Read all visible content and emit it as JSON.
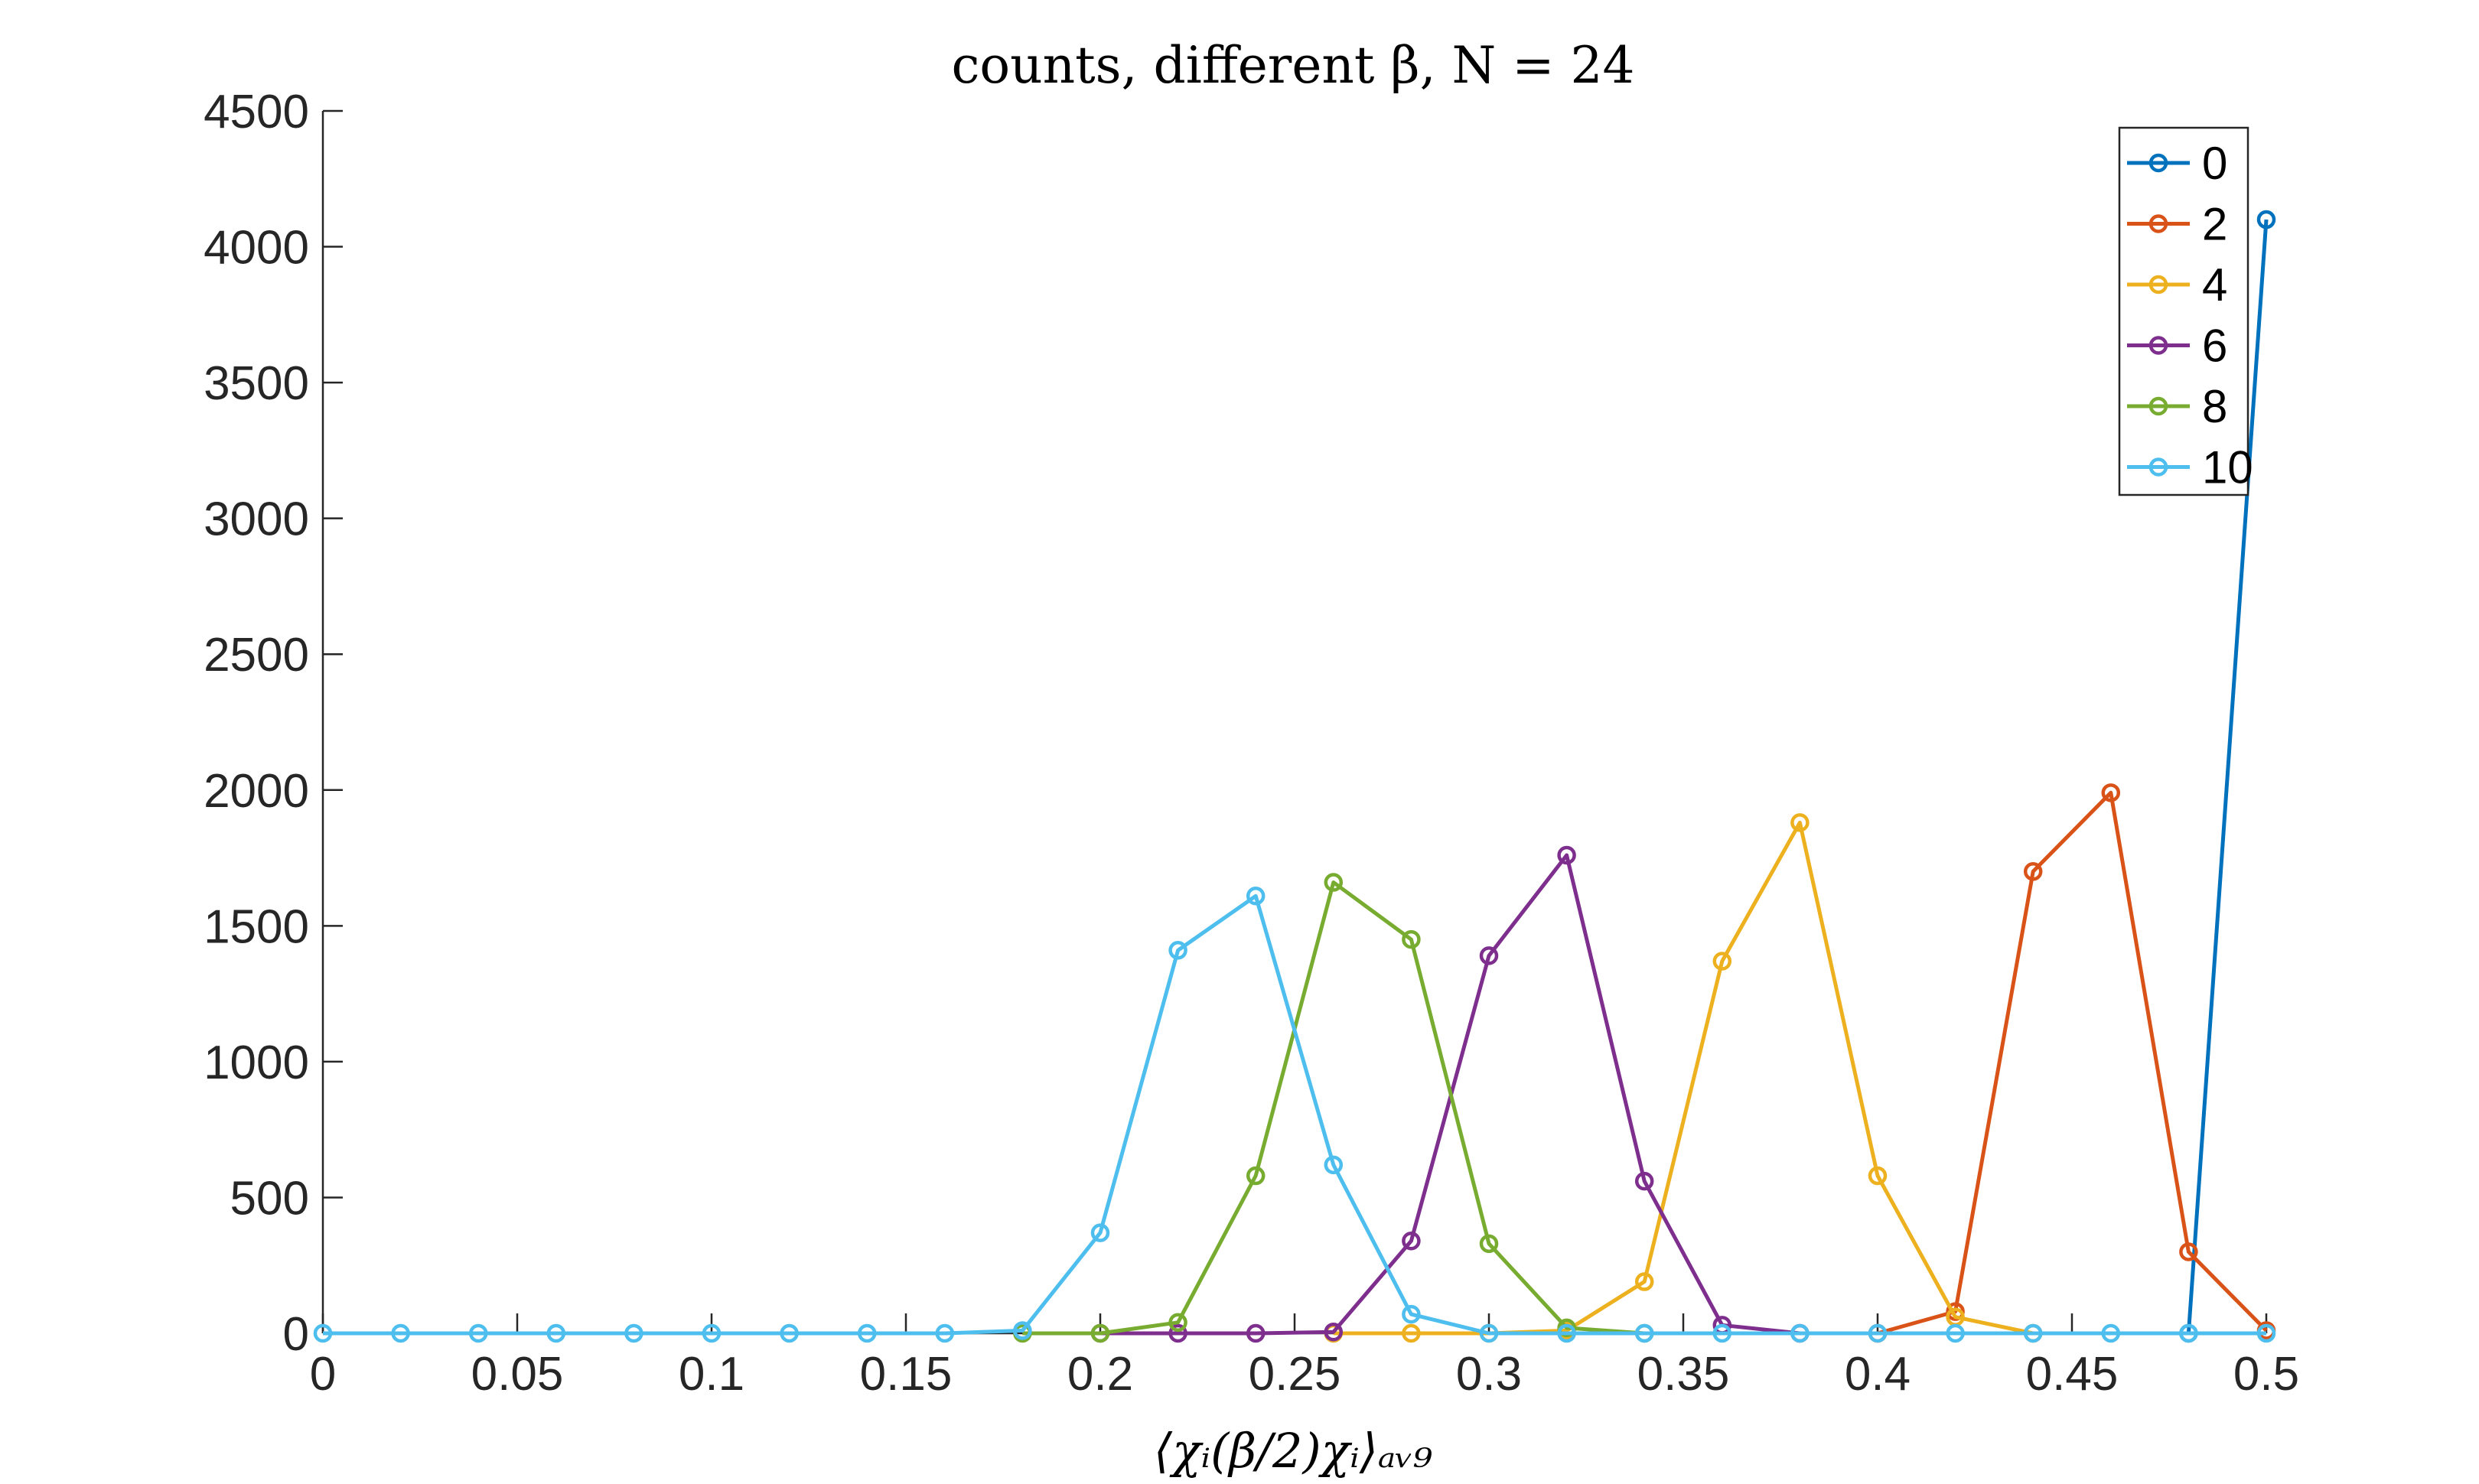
{
  "chart_data": {
    "type": "line",
    "title": "counts, different β, N = 24",
    "xlabel": "⟨χᵢ(β/2)χᵢ⟩ₐᵥ₉",
    "ylabel": "",
    "xlim": [
      0,
      0.5
    ],
    "ylim": [
      0,
      4500
    ],
    "xticks": [
      0,
      0.05,
      0.1,
      0.15,
      0.2,
      0.25,
      0.3,
      0.35,
      0.4,
      0.45,
      0.5
    ],
    "xtick_labels": [
      "0",
      "0.05",
      "0.1",
      "0.15",
      "0.2",
      "0.25",
      "0.3",
      "0.35",
      "0.4",
      "0.45",
      "0.5"
    ],
    "yticks": [
      0,
      500,
      1000,
      1500,
      2000,
      2500,
      3000,
      3500,
      4000,
      4500
    ],
    "ytick_labels": [
      "0",
      "500",
      "1000",
      "1500",
      "2000",
      "2500",
      "3000",
      "3500",
      "4000",
      "4500"
    ],
    "grid": false,
    "legend_position": "top-right",
    "legend_labels": [
      "0",
      "2",
      "4",
      "6",
      "8",
      "10"
    ],
    "marker": "circle",
    "series": [
      {
        "name": "0",
        "color": "#0072BD",
        "x": [
          0.48,
          0.5
        ],
        "y": [
          0,
          4100
        ]
      },
      {
        "name": "2",
        "color": "#D95319",
        "x": [
          0.4,
          0.42,
          0.44,
          0.46,
          0.48,
          0.5
        ],
        "y": [
          0,
          80,
          1700,
          1990,
          300,
          10
        ]
      },
      {
        "name": "4",
        "color": "#EDB120",
        "x": [
          0.26,
          0.28,
          0.3,
          0.32,
          0.34,
          0.36,
          0.38,
          0.4,
          0.42,
          0.44
        ],
        "y": [
          0,
          0,
          0,
          10,
          190,
          1370,
          1880,
          580,
          60,
          0
        ]
      },
      {
        "name": "6",
        "color": "#7E2F8E",
        "x": [
          0.2,
          0.22,
          0.24,
          0.26,
          0.28,
          0.3,
          0.32,
          0.34,
          0.36,
          0.38
        ],
        "y": [
          0,
          0,
          0,
          5,
          340,
          1390,
          1760,
          560,
          30,
          0
        ]
      },
      {
        "name": "8",
        "color": "#77AC30",
        "x": [
          0.18,
          0.2,
          0.22,
          0.24,
          0.26,
          0.28,
          0.3,
          0.32,
          0.34
        ],
        "y": [
          0,
          0,
          40,
          580,
          1660,
          1450,
          330,
          20,
          0
        ]
      },
      {
        "name": "10",
        "color": "#4DBEEE",
        "x": [
          0,
          0.02,
          0.04,
          0.06,
          0.08,
          0.1,
          0.12,
          0.14,
          0.16,
          0.18,
          0.2,
          0.22,
          0.24,
          0.26,
          0.28,
          0.3,
          0.32,
          0.34,
          0.36,
          0.38,
          0.4,
          0.42,
          0.44,
          0.46,
          0.48,
          0.5
        ],
        "y": [
          0,
          0,
          0,
          0,
          0,
          0,
          0,
          0,
          0,
          10,
          370,
          1410,
          1610,
          620,
          70,
          0,
          0,
          0,
          0,
          0,
          0,
          0,
          0,
          0,
          0,
          0
        ]
      }
    ]
  }
}
